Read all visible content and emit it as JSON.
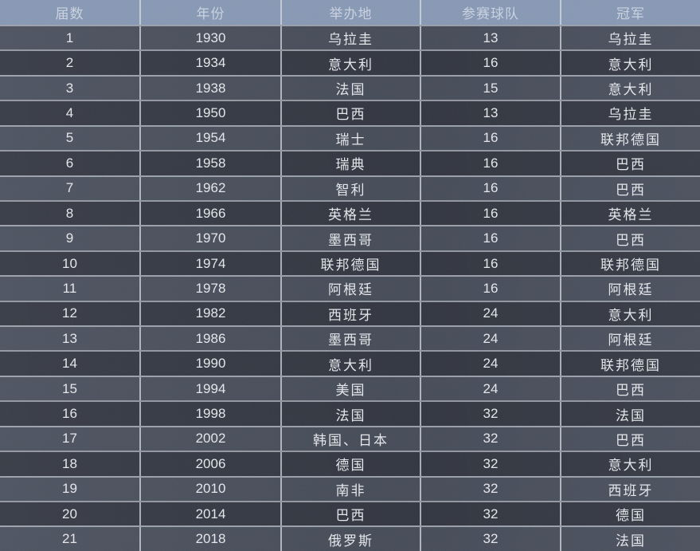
{
  "colors": {
    "header_bg": "#8697b3",
    "header_text": "#c9d1df",
    "row_odd_bg": "#474d5a",
    "row_even_bg": "#333742",
    "body_text": "#e3e5ea",
    "grid_line": "#d2d8e0"
  },
  "chart_data": {
    "type": "table",
    "columns": [
      "届数",
      "年份",
      "举办地",
      "参赛球队",
      "冠军"
    ],
    "rows": [
      [
        "1",
        "1930",
        "乌拉圭",
        "13",
        "乌拉圭"
      ],
      [
        "2",
        "1934",
        "意大利",
        "16",
        "意大利"
      ],
      [
        "3",
        "1938",
        "法国",
        "15",
        "意大利"
      ],
      [
        "4",
        "1950",
        "巴西",
        "13",
        "乌拉圭"
      ],
      [
        "5",
        "1954",
        "瑞士",
        "16",
        "联邦德国"
      ],
      [
        "6",
        "1958",
        "瑞典",
        "16",
        "巴西"
      ],
      [
        "7",
        "1962",
        "智利",
        "16",
        "巴西"
      ],
      [
        "8",
        "1966",
        "英格兰",
        "16",
        "英格兰"
      ],
      [
        "9",
        "1970",
        "墨西哥",
        "16",
        "巴西"
      ],
      [
        "10",
        "1974",
        "联邦德国",
        "16",
        "联邦德国"
      ],
      [
        "11",
        "1978",
        "阿根廷",
        "16",
        "阿根廷"
      ],
      [
        "12",
        "1982",
        "西班牙",
        "24",
        "意大利"
      ],
      [
        "13",
        "1986",
        "墨西哥",
        "24",
        "阿根廷"
      ],
      [
        "14",
        "1990",
        "意大利",
        "24",
        "联邦德国"
      ],
      [
        "15",
        "1994",
        "美国",
        "24",
        "巴西"
      ],
      [
        "16",
        "1998",
        "法国",
        "32",
        "法国"
      ],
      [
        "17",
        "2002",
        "韩国、日本",
        "32",
        "巴西"
      ],
      [
        "18",
        "2006",
        "德国",
        "32",
        "意大利"
      ],
      [
        "19",
        "2010",
        "南非",
        "32",
        "西班牙"
      ],
      [
        "20",
        "2014",
        "巴西",
        "32",
        "德国"
      ],
      [
        "21",
        "2018",
        "俄罗斯",
        "32",
        "法国"
      ]
    ]
  }
}
